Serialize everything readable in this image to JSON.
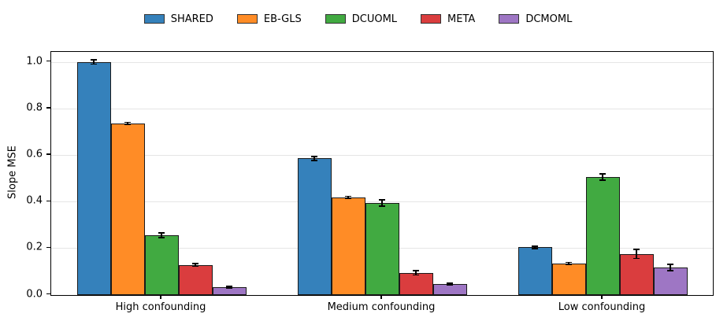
{
  "chart_data": {
    "type": "bar",
    "title": "",
    "xlabel": "",
    "ylabel": "Slope MSE",
    "categories": [
      "High confounding",
      "Medium confounding",
      "Low confounding"
    ],
    "series": [
      {
        "name": "SHARED",
        "color": "#3581bb",
        "values": [
          1.0,
          0.585,
          0.203
        ],
        "errors": [
          0.01,
          0.008,
          0.005
        ]
      },
      {
        "name": "EB-GLS",
        "color": "#ff8c26",
        "values": [
          0.735,
          0.418,
          0.134
        ],
        "errors": [
          0.005,
          0.004,
          0.004
        ]
      },
      {
        "name": "DCUOML",
        "color": "#41aa41",
        "values": [
          0.255,
          0.394,
          0.505
        ],
        "errors": [
          0.01,
          0.013,
          0.013
        ]
      },
      {
        "name": "META",
        "color": "#da3d3e",
        "values": [
          0.128,
          0.094,
          0.175
        ],
        "errors": [
          0.006,
          0.009,
          0.02
        ]
      },
      {
        "name": "DCMOML",
        "color": "#9e76c4",
        "values": [
          0.032,
          0.046,
          0.117
        ],
        "errors": [
          0.003,
          0.004,
          0.014
        ]
      }
    ],
    "ylim": [
      0,
      1.043
    ],
    "yticks": [
      0.0,
      0.2,
      0.4,
      0.6,
      0.8,
      1.0
    ],
    "ytick_labels": [
      "0.0",
      "0.2",
      "0.4",
      "0.6",
      "0.8",
      "1.0"
    ],
    "grid": "horizontal",
    "grid_color": "#e5e5e5",
    "bar_edge_color": "#1a1a1a",
    "error_bar_color": "#000000",
    "legend_position": "top-center",
    "error_bars": true
  }
}
